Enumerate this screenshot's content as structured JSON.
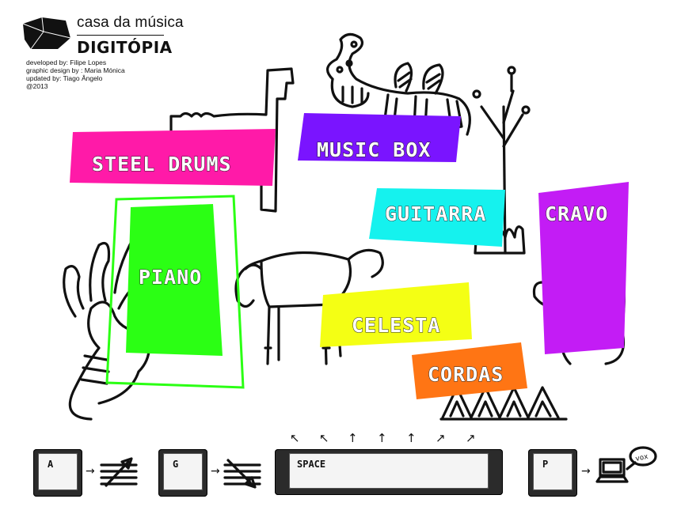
{
  "header": {
    "brand": "casa da música",
    "product": "DIGITÓPIA",
    "credits": [
      "developed by: Filipe Lopes",
      "graphic design by : Maria Mónica",
      "updated by: Tiago Ângelo",
      "@2013"
    ]
  },
  "instruments": {
    "steel_drums": {
      "label": "STEEL DRUMS",
      "color": "#ff1aa8"
    },
    "music_box": {
      "label": "MUSIC BOX",
      "color": "#7a14ff"
    },
    "guitarra": {
      "label": "GUITARRA",
      "color": "#15f2ee"
    },
    "cravo": {
      "label": "CRAVO",
      "color": "#c31cf5"
    },
    "piano": {
      "label": "PIANO",
      "color": "#2bff14"
    },
    "celesta": {
      "label": "CELESTA",
      "color": "#f4ff14"
    },
    "cordas": {
      "label": "CORDAS",
      "color": "#ff7514"
    }
  },
  "controls": {
    "key_a": {
      "label": "A",
      "icon": "pitch-up-icon"
    },
    "key_g": {
      "label": "G",
      "icon": "pitch-down-icon"
    },
    "key_space": {
      "label": "SPACE",
      "icon": "up-arrows-icon"
    },
    "key_p": {
      "label": "P",
      "icon": "computer-sound-icon"
    }
  }
}
